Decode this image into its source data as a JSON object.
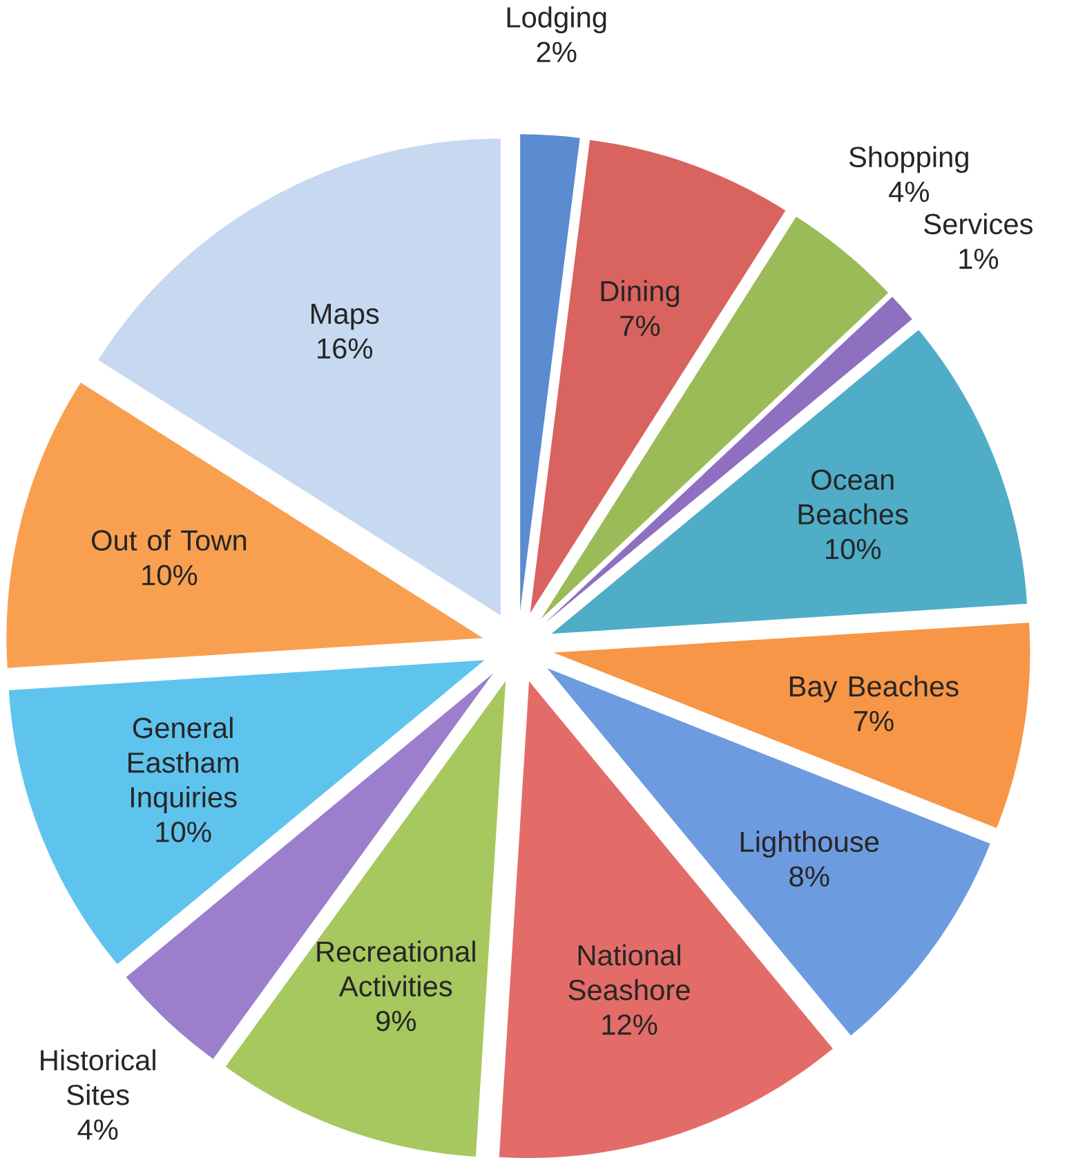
{
  "chart_data": {
    "type": "pie",
    "categories": [
      "Lodging",
      "Dining",
      "Shopping",
      "Services",
      "Ocean Beaches",
      "Bay Beaches",
      "Lighthouse",
      "National Seashore",
      "Recreational Activities",
      "Historical Sites",
      "General Eastham Inquiries",
      "Out of Town",
      "Maps"
    ],
    "values": [
      2,
      7,
      4,
      1,
      10,
      7,
      8,
      12,
      9,
      4,
      10,
      10,
      16
    ],
    "colors": [
      "#5b8bd0",
      "#d9635f",
      "#9bbb59",
      "#8e6fc0",
      "#4fadc8",
      "#f79646",
      "#6d9be0",
      "#e36c69",
      "#a6c85f",
      "#9b7fcc",
      "#5ec4ee",
      "#f9a050",
      "#c6d9f1"
    ],
    "value_labels": [
      "2%",
      "7%",
      "4%",
      "1%",
      "10%",
      "7%",
      "8%",
      "12%",
      "9%",
      "4%",
      "10%",
      "10%",
      "16%"
    ]
  }
}
